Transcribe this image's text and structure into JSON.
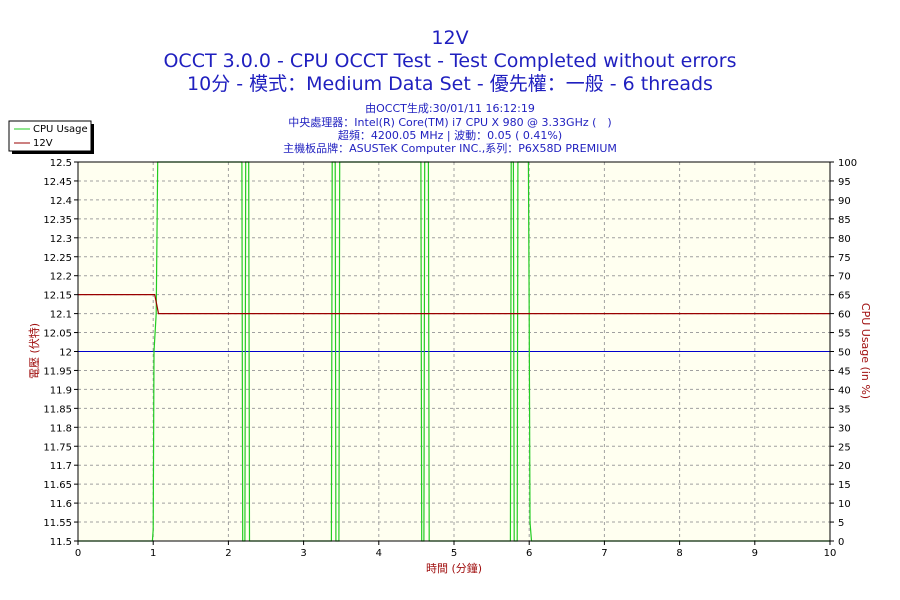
{
  "header": {
    "title": "12V",
    "subtitle": "OCCT 3.0.0 - CPU OCCT Test - Test Completed without errors",
    "subtitle2": "10分 - 模式：Medium Data Set - 優先權：一般 - 6 threads",
    "info1": "由OCCT生成:30/01/11 16:12:19",
    "info2": "中央處理器：Intel(R) Core(TM) i7 CPU X 980 @ 3.33GHz (　)",
    "info3": "超頻：4200.05 MHz | 波動：0.05 ( 0.41%)",
    "info4": "主機板品牌：ASUSTeK Computer INC.,系列：P6X58D PREMIUM"
  },
  "colors": {
    "background": "#ffffff",
    "plot_bg": "#fffff0",
    "grid": "#a0a0a0",
    "title_text": "#1f1fbf",
    "axis_label": "#a01010",
    "cpu_usage": "#22cc22",
    "v12": "#990000",
    "ref_line": "#0000cc"
  },
  "chart_data": {
    "type": "line",
    "xlabel": "時間 (分鐘)",
    "ylabel_left": "電壓 (伏特)",
    "ylabel_right": "CPU Usage (in %)",
    "xlim": [
      0,
      10
    ],
    "ylim_left": [
      11.5,
      12.5
    ],
    "ylim_right": [
      0,
      100
    ],
    "x_ticks": [
      "0",
      "1",
      "2",
      "3",
      "4",
      "5",
      "6",
      "7",
      "8",
      "9",
      "10"
    ],
    "y_ticks_left": [
      "11.5",
      "11.55",
      "11.6",
      "11.65",
      "11.7",
      "11.75",
      "11.8",
      "11.85",
      "11.9",
      "11.95",
      "12",
      "12.05",
      "12.1",
      "12.15",
      "12.2",
      "12.25",
      "12.3",
      "12.35",
      "12.4",
      "12.45",
      "12.5"
    ],
    "y_ticks_right": [
      "0",
      "5",
      "10",
      "15",
      "20",
      "25",
      "30",
      "35",
      "40",
      "45",
      "50",
      "55",
      "60",
      "65",
      "70",
      "75",
      "80",
      "85",
      "90",
      "95",
      "100"
    ],
    "grid": true,
    "legend_position": "top-left",
    "series": [
      {
        "name": "CPU Usage",
        "axis": "right",
        "color": "#22cc22",
        "x": [
          0,
          0.99,
          1.0,
          1.01,
          1.04,
          1.06,
          2.18,
          2.19,
          2.22,
          2.23,
          2.27,
          2.28,
          3.37,
          3.38,
          3.42,
          3.43,
          3.47,
          3.48,
          4.56,
          4.57,
          4.6,
          4.61,
          4.66,
          4.67,
          5.75,
          5.76,
          5.79,
          5.8,
          5.84,
          5.85,
          5.99,
          6.0,
          6.01,
          6.03,
          10
        ],
        "y": [
          0,
          0,
          3,
          50,
          60,
          100,
          100,
          0,
          0,
          100,
          100,
          0,
          0,
          100,
          100,
          0,
          0,
          100,
          100,
          0,
          0,
          100,
          100,
          0,
          0,
          100,
          100,
          0,
          0,
          100,
          100,
          60,
          5,
          0,
          0
        ]
      },
      {
        "name": "12V",
        "axis": "left",
        "color": "#990000",
        "x": [
          0,
          1.02,
          1.05,
          1.07,
          10
        ],
        "y": [
          12.15,
          12.15,
          12.12,
          12.1,
          12.1
        ]
      }
    ],
    "reference_line": {
      "axis": "left",
      "y": 12.0,
      "color": "#0000cc"
    }
  }
}
